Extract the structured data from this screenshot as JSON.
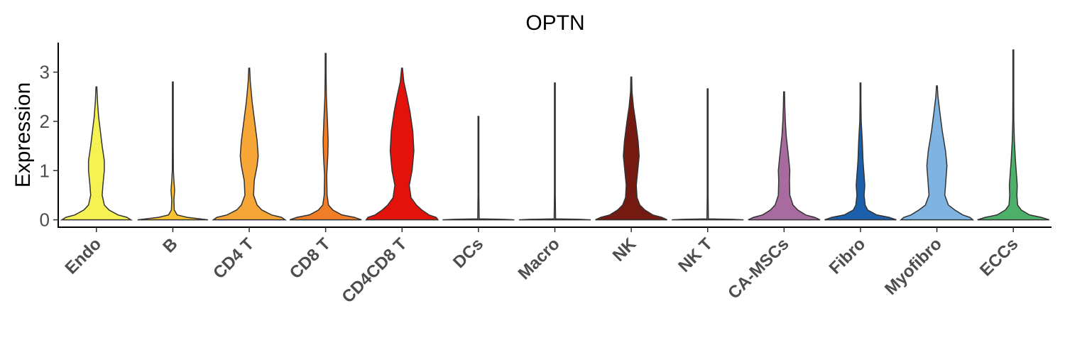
{
  "chart_data": {
    "type": "violin",
    "title": "OPTN",
    "ylabel": "Expression",
    "xlabel": "",
    "ylim": [
      -0.15,
      3.6
    ],
    "yticks": [
      0,
      1,
      2,
      3
    ],
    "categories": [
      "Endo",
      "B",
      "CD4 T",
      "CD8 T",
      "CD4CD8 T",
      "DCs",
      "Macro",
      "NK",
      "NK T",
      "CA-MSCs",
      "Fibro",
      "Myofibro",
      "ECCs"
    ],
    "series": [
      {
        "category": "Endo",
        "color": "#F7F253",
        "max": 2.7,
        "density": [
          [
            0,
            0.96
          ],
          [
            0.05,
            0.85
          ],
          [
            0.1,
            0.6
          ],
          [
            0.2,
            0.35
          ],
          [
            0.3,
            0.22
          ],
          [
            0.5,
            0.16
          ],
          [
            0.7,
            0.18
          ],
          [
            1.0,
            0.22
          ],
          [
            1.2,
            0.22
          ],
          [
            1.5,
            0.16
          ],
          [
            1.8,
            0.11
          ],
          [
            2.1,
            0.06
          ],
          [
            2.4,
            0.03
          ],
          [
            2.7,
            0
          ]
        ]
      },
      {
        "category": "B",
        "color": "#F9C22E",
        "max": 2.8,
        "density": [
          [
            0,
            0.98
          ],
          [
            0.05,
            0.4
          ],
          [
            0.1,
            0.12
          ],
          [
            0.2,
            0.04
          ],
          [
            0.4,
            0.03
          ],
          [
            0.6,
            0.05
          ],
          [
            0.8,
            0.03
          ],
          [
            1.0,
            0.015
          ],
          [
            1.5,
            0.01
          ],
          [
            2.0,
            0.005
          ],
          [
            2.8,
            0
          ]
        ]
      },
      {
        "category": "CD4 T",
        "color": "#F5A636",
        "max": 3.08,
        "density": [
          [
            0,
            1.0
          ],
          [
            0.05,
            0.9
          ],
          [
            0.1,
            0.62
          ],
          [
            0.2,
            0.35
          ],
          [
            0.3,
            0.22
          ],
          [
            0.5,
            0.12
          ],
          [
            0.8,
            0.14
          ],
          [
            1.1,
            0.22
          ],
          [
            1.3,
            0.25
          ],
          [
            1.6,
            0.22
          ],
          [
            2.0,
            0.15
          ],
          [
            2.4,
            0.08
          ],
          [
            2.8,
            0.03
          ],
          [
            3.08,
            0
          ]
        ]
      },
      {
        "category": "CD8 T",
        "color": "#F07E26",
        "max": 3.38,
        "density": [
          [
            0,
            1.0
          ],
          [
            0.05,
            0.8
          ],
          [
            0.1,
            0.45
          ],
          [
            0.2,
            0.2
          ],
          [
            0.3,
            0.08
          ],
          [
            0.5,
            0.04
          ],
          [
            0.9,
            0.03
          ],
          [
            1.3,
            0.06
          ],
          [
            1.6,
            0.07
          ],
          [
            2.0,
            0.05
          ],
          [
            2.5,
            0.02
          ],
          [
            3.0,
            0.008
          ],
          [
            3.38,
            0
          ]
        ]
      },
      {
        "category": "CD4CD8 T",
        "color": "#E3120B",
        "max": 3.08,
        "density": [
          [
            0,
            1.0
          ],
          [
            0.05,
            0.95
          ],
          [
            0.1,
            0.75
          ],
          [
            0.2,
            0.55
          ],
          [
            0.3,
            0.4
          ],
          [
            0.45,
            0.25
          ],
          [
            0.7,
            0.2
          ],
          [
            1.0,
            0.28
          ],
          [
            1.4,
            0.33
          ],
          [
            1.8,
            0.3
          ],
          [
            2.2,
            0.22
          ],
          [
            2.5,
            0.14
          ],
          [
            2.8,
            0.05
          ],
          [
            3.08,
            0
          ]
        ]
      },
      {
        "category": "DCs",
        "color": "#9A9A9A",
        "max": 2.1,
        "density": [
          [
            0,
            1.0
          ],
          [
            0.01,
            0.7
          ],
          [
            0.02,
            0.02
          ],
          [
            0.5,
            0.005
          ],
          [
            1.0,
            0.005
          ],
          [
            2.1,
            0
          ]
        ]
      },
      {
        "category": "Macro",
        "color": "#9A9A9A",
        "max": 2.78,
        "density": [
          [
            0,
            1.0
          ],
          [
            0.01,
            0.7
          ],
          [
            0.02,
            0.02
          ],
          [
            0.5,
            0.005
          ],
          [
            1.0,
            0.005
          ],
          [
            2.78,
            0
          ]
        ]
      },
      {
        "category": "NK",
        "color": "#751A10",
        "max": 2.9,
        "density": [
          [
            0,
            1.0
          ],
          [
            0.05,
            0.85
          ],
          [
            0.1,
            0.6
          ],
          [
            0.2,
            0.38
          ],
          [
            0.3,
            0.24
          ],
          [
            0.45,
            0.16
          ],
          [
            0.7,
            0.14
          ],
          [
            1.0,
            0.18
          ],
          [
            1.3,
            0.22
          ],
          [
            1.6,
            0.19
          ],
          [
            2.0,
            0.12
          ],
          [
            2.3,
            0.06
          ],
          [
            2.6,
            0.02
          ],
          [
            2.9,
            0
          ]
        ]
      },
      {
        "category": "NK T",
        "color": "#9A9A9A",
        "max": 2.66,
        "density": [
          [
            0,
            1.0
          ],
          [
            0.01,
            0.7
          ],
          [
            0.02,
            0.02
          ],
          [
            0.5,
            0.005
          ],
          [
            1.0,
            0.005
          ],
          [
            2.66,
            0
          ]
        ]
      },
      {
        "category": "CA-MSCs",
        "color": "#A86BA0",
        "max": 2.6,
        "density": [
          [
            0,
            1.0
          ],
          [
            0.05,
            0.85
          ],
          [
            0.1,
            0.6
          ],
          [
            0.2,
            0.38
          ],
          [
            0.3,
            0.25
          ],
          [
            0.5,
            0.16
          ],
          [
            0.8,
            0.15
          ],
          [
            1.0,
            0.16
          ],
          [
            1.3,
            0.12
          ],
          [
            1.7,
            0.06
          ],
          [
            2.0,
            0.035
          ],
          [
            2.3,
            0.02
          ],
          [
            2.6,
            0
          ]
        ]
      },
      {
        "category": "Fibro",
        "color": "#1C5FAA",
        "max": 2.78,
        "density": [
          [
            0,
            1.0
          ],
          [
            0.05,
            0.8
          ],
          [
            0.1,
            0.45
          ],
          [
            0.2,
            0.2
          ],
          [
            0.3,
            0.13
          ],
          [
            0.5,
            0.1
          ],
          [
            0.7,
            0.12
          ],
          [
            0.9,
            0.1
          ],
          [
            1.2,
            0.07
          ],
          [
            1.6,
            0.05
          ],
          [
            2.0,
            0.02
          ],
          [
            2.4,
            0.01
          ],
          [
            2.78,
            0
          ]
        ]
      },
      {
        "category": "Myofibro",
        "color": "#7EB3E2",
        "max": 2.72,
        "density": [
          [
            0,
            1.0
          ],
          [
            0.05,
            0.92
          ],
          [
            0.1,
            0.72
          ],
          [
            0.2,
            0.5
          ],
          [
            0.3,
            0.32
          ],
          [
            0.5,
            0.22
          ],
          [
            0.8,
            0.25
          ],
          [
            1.1,
            0.28
          ],
          [
            1.4,
            0.24
          ],
          [
            1.8,
            0.15
          ],
          [
            2.2,
            0.08
          ],
          [
            2.5,
            0.03
          ],
          [
            2.72,
            0
          ]
        ]
      },
      {
        "category": "ECCs",
        "color": "#4DB06A",
        "max": 3.45,
        "density": [
          [
            0,
            1.0
          ],
          [
            0.05,
            0.78
          ],
          [
            0.1,
            0.45
          ],
          [
            0.2,
            0.22
          ],
          [
            0.3,
            0.12
          ],
          [
            0.5,
            0.1
          ],
          [
            0.7,
            0.11
          ],
          [
            0.9,
            0.09
          ],
          [
            1.2,
            0.06
          ],
          [
            1.6,
            0.03
          ],
          [
            2.0,
            0.015
          ],
          [
            2.5,
            0.006
          ],
          [
            3.0,
            0.003
          ],
          [
            3.45,
            0
          ]
        ]
      }
    ]
  }
}
